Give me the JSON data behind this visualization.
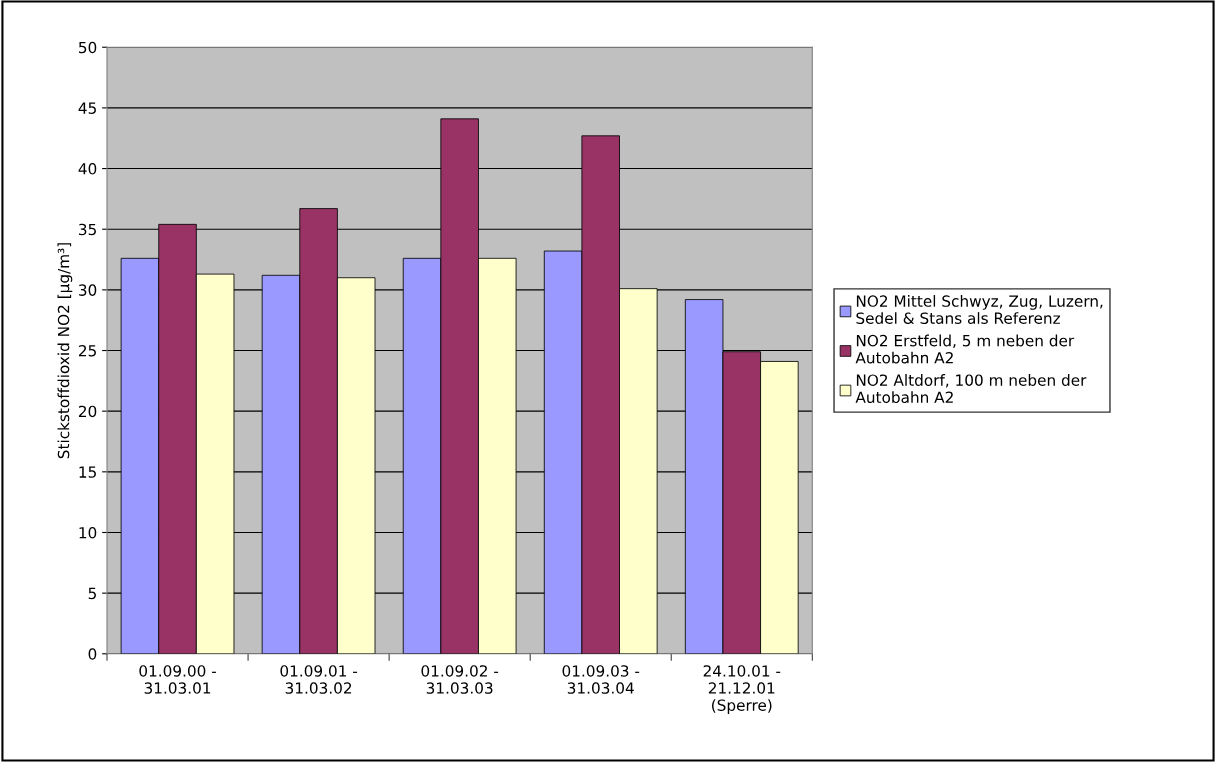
{
  "chart_data": {
    "type": "bar",
    "ylabel": "Stickstoffdioxid NO2 [µg/m³]",
    "categories": [
      "01.09.00 -\n31.03.01",
      "01.09.01 -\n31.03.02",
      "01.09.02 -\n31.03.03",
      "01.09.03 -\n31.03.04",
      "24.10.01 -\n21.12.01\n(Sperre)"
    ],
    "series": [
      {
        "name": "NO2 Mittel Schwyz, Zug, Luzern,\nSedel & Stans als Referenz",
        "color": "#9999ff",
        "values": [
          32.6,
          31.2,
          32.6,
          33.2,
          29.2
        ]
      },
      {
        "name": "NO2 Erstfeld, 5 m neben der\nAutobahn A2",
        "color": "#993366",
        "values": [
          35.4,
          36.7,
          44.1,
          42.7,
          24.9
        ]
      },
      {
        "name": "NO2 Altdorf, 100 m neben der\nAutobahn A2",
        "color": "#ffffcc",
        "values": [
          31.3,
          31.0,
          32.6,
          30.1,
          24.1
        ]
      }
    ],
    "ylim": [
      0,
      50
    ],
    "yticks": [
      0,
      5,
      10,
      15,
      20,
      25,
      30,
      35,
      40,
      45,
      50
    ],
    "grid": "y",
    "legend": "right"
  }
}
